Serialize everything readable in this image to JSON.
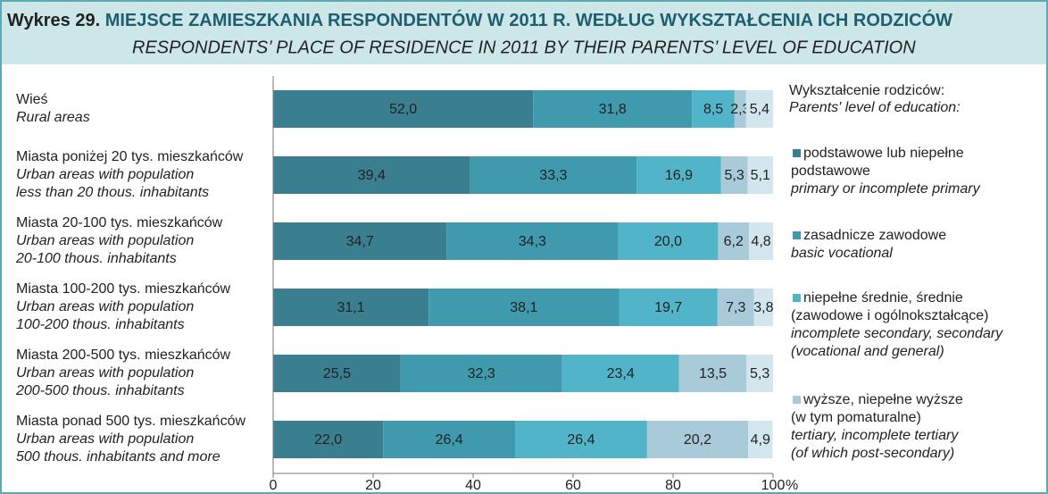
{
  "chart_data": {
    "type": "stacked-bar-horizontal",
    "title_prefix": "Wykres 29.",
    "title": "MIEJSCE ZAMIESZKANIA RESPONDENTÓW W 2011 R. WEDŁUG WYKSZTAŁCENIA ICH RODZICÓW",
    "subtitle": "RESPONDENTS’ PLACE OF RESIDENCE IN 2011 BY THEIR PARENTS’ LEVEL OF EDUCATION",
    "categories": [
      [
        "Wieś",
        "Rural areas"
      ],
      [
        "Miasta poniżej 20 tys. mieszkańców",
        "Urban areas with population",
        "less than 20 thous. inhabitants"
      ],
      [
        "Miasta 20-100 tys. mieszkańców",
        "Urban areas with population",
        "20-100 thous. inhabitants"
      ],
      [
        "Miasta 100-200 tys. mieszkańców",
        "Urban areas with population",
        "100-200 thous. inhabitants"
      ],
      [
        "Miasta 200-500 tys. mieszkańców",
        "Urban areas with population",
        "200-500 thous. inhabitants"
      ],
      [
        "Miasta ponad 500 tys. mieszkańców",
        "Urban areas with population",
        "500 thous. inhabitants and more"
      ]
    ],
    "legend_title": [
      "Wykształcenie rodziców:",
      "Parents' level of education:"
    ],
    "series": [
      {
        "name": [
          "podstawowe lub niepełne",
          "podstawowe"
        ],
        "name_en": [
          "primary or incomplete primary"
        ],
        "color": "#3a7f8f",
        "values": [
          52.0,
          39.4,
          34.7,
          31.1,
          25.5,
          22.0
        ],
        "value_labels": [
          "52,0",
          "39,4",
          "34,7",
          "31,1",
          "25,5",
          "22,0"
        ]
      },
      {
        "name": [
          "zasadnicze zawodowe"
        ],
        "name_en": [
          "basic vocational"
        ],
        "color": "#3f9aae",
        "values": [
          31.8,
          33.3,
          34.3,
          38.1,
          32.3,
          26.4
        ],
        "value_labels": [
          "31,8",
          "33,3",
          "34,3",
          "38,1",
          "32,3",
          "26,4"
        ]
      },
      {
        "name": [
          "niepełne średnie, średnie",
          "(zawodowe i ogólnokształcące)"
        ],
        "name_en": [
          "incomplete secondary, secondary",
          "(vocational and general)"
        ],
        "color": "#52b4c9",
        "values": [
          8.5,
          16.9,
          20.0,
          19.7,
          23.4,
          26.4
        ],
        "value_labels": [
          "8,5",
          "16,9",
          "20,0",
          "19,7",
          "23,4",
          "26,4"
        ]
      },
      {
        "name": [
          "wyższe, niepełne wyższe",
          "(w tym pomaturalne)"
        ],
        "name_en": [
          "tertiary, incomplete tertiary",
          "(of which post-secondary)"
        ],
        "color": "#a9cbd9",
        "values": [
          2.3,
          5.3,
          6.2,
          7.3,
          13.5,
          20.2
        ],
        "value_labels": [
          "2,3",
          "5,3",
          "6,2",
          "7,3",
          "13,5",
          "20,2"
        ]
      },
      {
        "color": "#d3e6ee",
        "values": [
          5.4,
          5.1,
          4.8,
          3.8,
          5.3,
          4.9
        ],
        "value_labels": [
          "5,4",
          "5,1",
          "4,8",
          "3,8",
          "5,3",
          "4,9"
        ]
      }
    ],
    "xlim": [
      0,
      100
    ],
    "xticks": [
      0,
      20,
      40,
      60,
      80,
      100
    ],
    "x_unit": "%"
  }
}
